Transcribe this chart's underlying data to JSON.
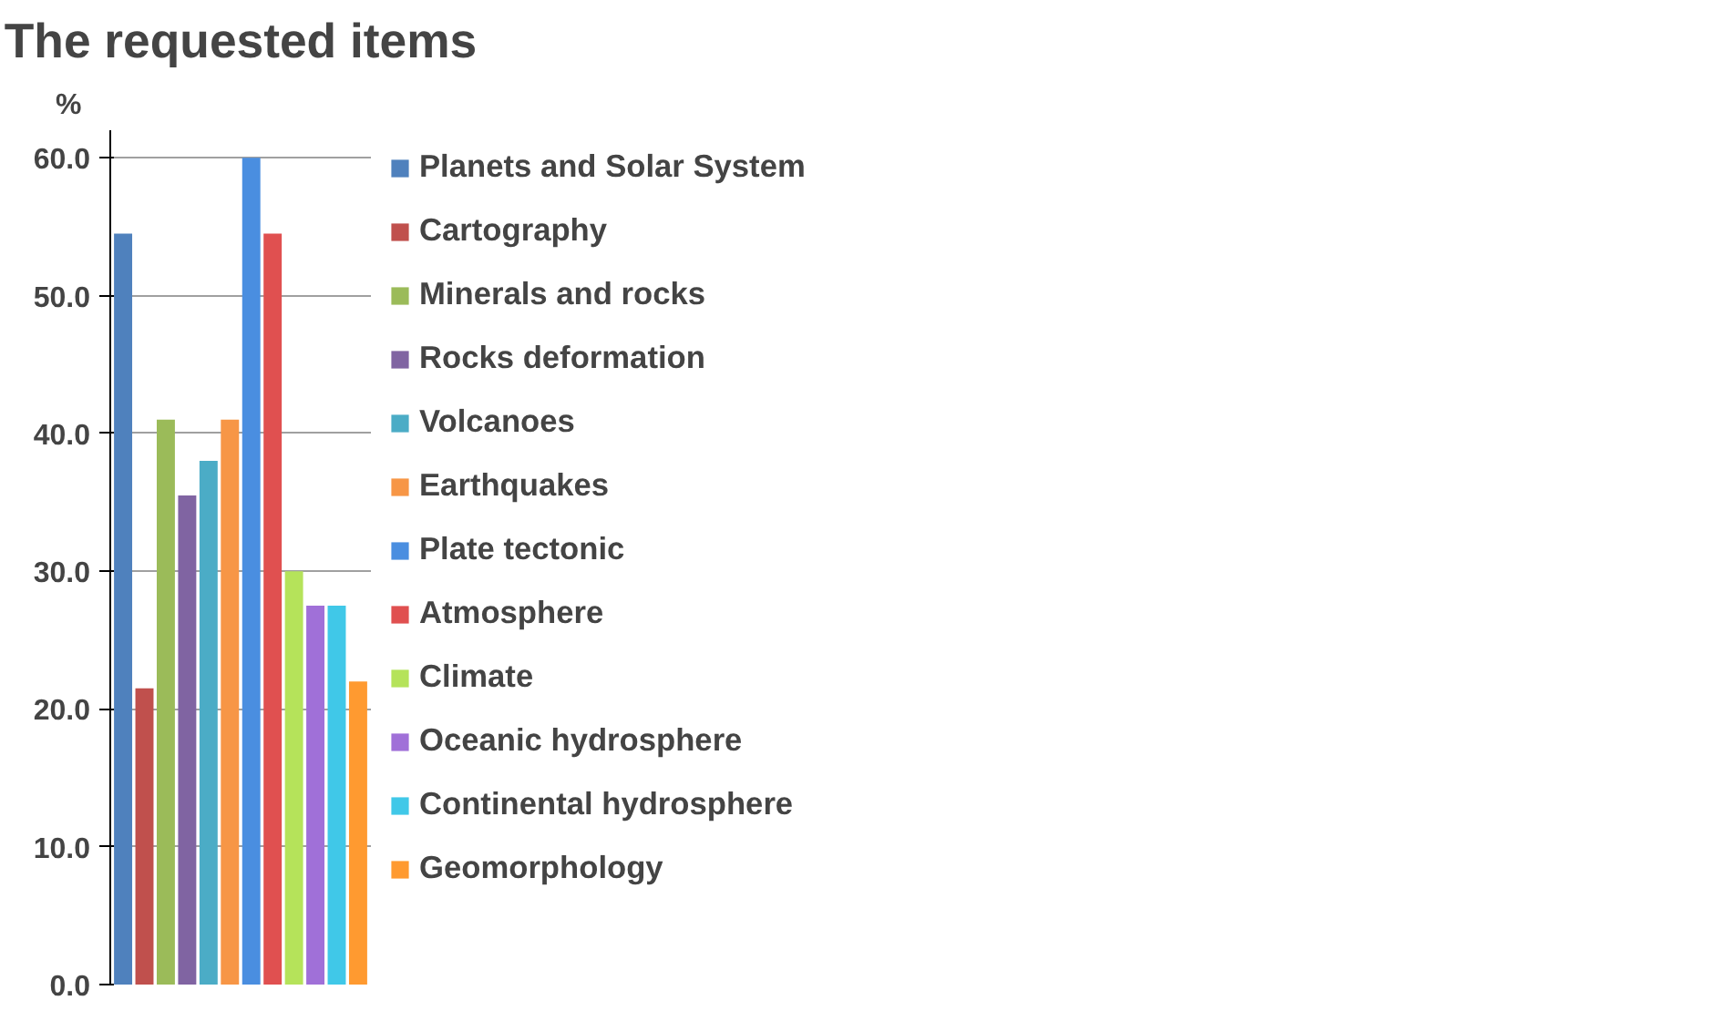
{
  "chart_data": {
    "type": "bar",
    "title": "The requested items",
    "ylabel": "%",
    "categories": [
      null,
      null,
      null,
      null,
      null,
      null,
      null,
      null,
      null,
      null,
      null,
      null
    ],
    "series": [
      {
        "name": "Planets and Solar System",
        "color": "#4f81bd",
        "values": [
          54.5,
          null,
          null,
          null,
          null,
          null,
          null,
          null,
          null,
          null,
          null,
          null
        ]
      },
      {
        "name": "Cartography",
        "color": "#c0504d",
        "values": [
          null,
          21.5,
          null,
          null,
          null,
          null,
          null,
          null,
          null,
          null,
          null,
          null
        ]
      },
      {
        "name": "Minerals and rocks",
        "color": "#9bbb59",
        "values": [
          null,
          null,
          41,
          null,
          null,
          null,
          null,
          null,
          null,
          null,
          null,
          null
        ]
      },
      {
        "name": "Rocks deformation",
        "color": "#8064a2",
        "values": [
          null,
          null,
          null,
          35.5,
          null,
          null,
          null,
          null,
          null,
          null,
          null,
          null
        ]
      },
      {
        "name": "Volcanoes",
        "color": "#4bacc6",
        "values": [
          null,
          null,
          null,
          null,
          38,
          null,
          null,
          null,
          null,
          null,
          null,
          null
        ]
      },
      {
        "name": "Earthquakes",
        "color": "#f79646",
        "values": [
          null,
          null,
          null,
          null,
          null,
          41,
          null,
          null,
          null,
          null,
          null,
          null
        ]
      },
      {
        "name": "Plate tectonic",
        "color": "#4a8ee0",
        "values": [
          null,
          null,
          null,
          null,
          null,
          null,
          60,
          null,
          null,
          null,
          null,
          null
        ]
      },
      {
        "name": "Atmosphere",
        "color": "#e05050",
        "values": [
          null,
          null,
          null,
          null,
          null,
          null,
          null,
          54.5,
          null,
          null,
          null,
          null
        ]
      },
      {
        "name": "Climate",
        "color": "#b5e35a",
        "values": [
          null,
          null,
          null,
          null,
          null,
          null,
          null,
          null,
          30,
          null,
          null,
          null
        ]
      },
      {
        "name": "Oceanic hydrosphere",
        "color": "#a070d8",
        "values": [
          null,
          null,
          null,
          null,
          null,
          null,
          null,
          null,
          null,
          27.5,
          null,
          null
        ]
      },
      {
        "name": "Continental hydrosphere",
        "color": "#40c8e8",
        "values": [
          null,
          null,
          null,
          null,
          null,
          null,
          null,
          null,
          null,
          null,
          27.5,
          null
        ]
      },
      {
        "name": "Geomorphology",
        "color": "#ff9a30",
        "values": [
          null,
          null,
          null,
          null,
          null,
          null,
          null,
          null,
          null,
          null,
          null,
          22
        ]
      }
    ],
    "ylim": [
      0,
      62
    ],
    "yticks": [
      {
        "value": 0,
        "label": "0.0"
      },
      {
        "value": 10,
        "label": "10.0"
      },
      {
        "value": 20,
        "label": "20.0"
      },
      {
        "value": 30,
        "label": "30.0"
      },
      {
        "value": 40,
        "label": "40.0"
      },
      {
        "value": 50,
        "label": "50.0"
      },
      {
        "value": 60,
        "label": "60.0"
      }
    ],
    "grid": "y",
    "tick_labels": "y",
    "legend": "right"
  }
}
